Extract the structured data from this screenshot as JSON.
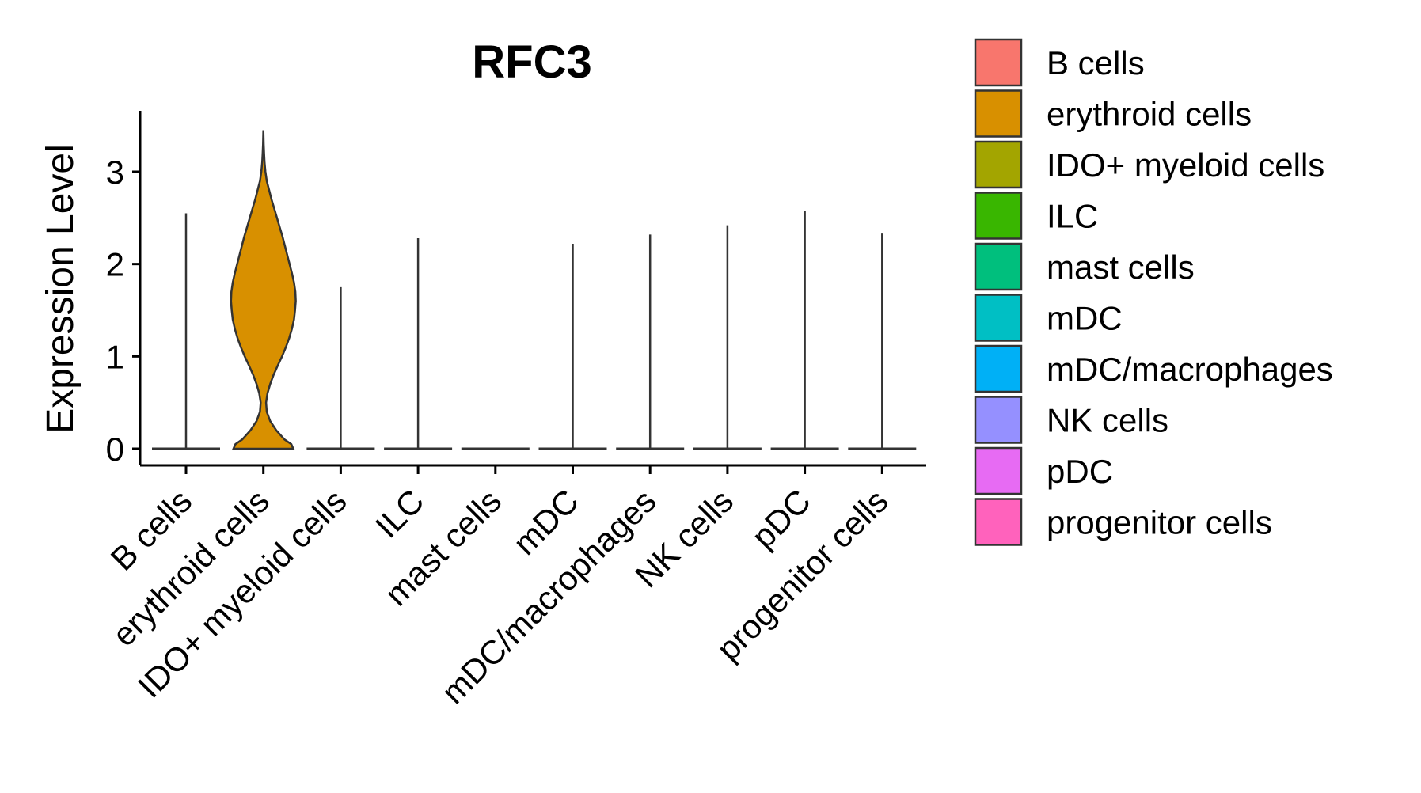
{
  "chart_data": {
    "type": "violin",
    "title": "RFC3",
    "xlabel": "",
    "ylabel": "Expression Level",
    "ylim": [
      -0.2,
      3.65
    ],
    "yticks": [
      0,
      1,
      2,
      3
    ],
    "ytick_labels": [
      "0",
      "1",
      "2",
      "3"
    ],
    "categories": [
      "B cells",
      "erythroid cells",
      "IDO+ myeloid cells",
      "ILC",
      "mast cells",
      "mDC",
      "mDC/macrophages",
      "NK cells",
      "pDC",
      "progenitor cells"
    ],
    "colors": [
      "#F8766D",
      "#D89000",
      "#A3A500",
      "#39B600",
      "#00BF7D",
      "#00BFC4",
      "#00B0F6",
      "#9590FF",
      "#E76BF3",
      "#FF62BC"
    ],
    "max_values": [
      2.55,
      3.45,
      1.75,
      2.28,
      0.0,
      2.22,
      2.32,
      2.42,
      2.58,
      2.33
    ],
    "erythroid_density": {
      "y": [
        0.0,
        0.05,
        0.1,
        0.2,
        0.3,
        0.4,
        0.5,
        0.6,
        0.7,
        0.8,
        0.9,
        1.0,
        1.1,
        1.2,
        1.3,
        1.4,
        1.5,
        1.6,
        1.7,
        1.8,
        1.9,
        2.0,
        2.1,
        2.2,
        2.3,
        2.4,
        2.5,
        2.6,
        2.7,
        2.8,
        2.9,
        3.0,
        3.1,
        3.2,
        3.3,
        3.45
      ],
      "width": [
        0.88,
        0.82,
        0.62,
        0.38,
        0.2,
        0.1,
        0.08,
        0.12,
        0.2,
        0.3,
        0.42,
        0.55,
        0.66,
        0.76,
        0.84,
        0.9,
        0.93,
        0.95,
        0.94,
        0.9,
        0.84,
        0.77,
        0.7,
        0.63,
        0.56,
        0.48,
        0.4,
        0.32,
        0.24,
        0.17,
        0.1,
        0.06,
        0.035,
        0.02,
        0.01,
        0.0
      ]
    },
    "legend": {
      "position": "right",
      "entries": [
        "B cells",
        "erythroid cells",
        "IDO+ myeloid cells",
        "ILC",
        "mast cells",
        "mDC",
        "mDC/macrophages",
        "NK cells",
        "pDC",
        "progenitor cells"
      ]
    }
  }
}
